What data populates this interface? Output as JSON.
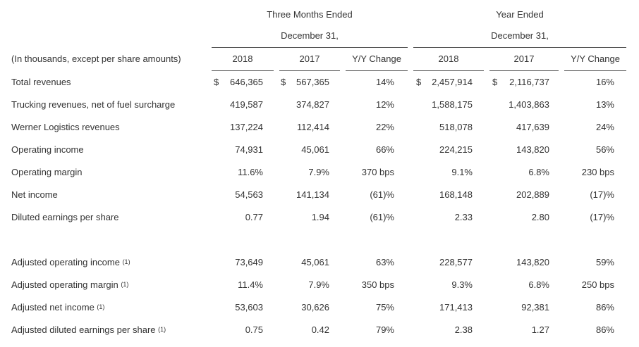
{
  "group_headers": {
    "three_months": {
      "line1": "Three Months Ended",
      "line2": "December 31,"
    },
    "year": {
      "line1": "Year Ended",
      "line2": "December 31,"
    }
  },
  "table": {
    "unit_label": "(In thousands, except per share amounts)",
    "columns": [
      "2018",
      "2017",
      "Y/Y Change",
      "2018",
      "2017",
      "Y/Y Change"
    ],
    "currency_symbol": "$",
    "rows": [
      {
        "label": "Total revenues",
        "sup": "",
        "values": [
          "646,365",
          "567,365",
          "14%",
          "2,457,914",
          "2,116,737",
          "16%"
        ]
      },
      {
        "label": "Trucking revenues, net of fuel surcharge",
        "sup": "",
        "values": [
          "419,587",
          "374,827",
          "12%",
          "1,588,175",
          "1,403,863",
          "13%"
        ]
      },
      {
        "label": "Werner Logistics revenues",
        "sup": "",
        "values": [
          "137,224",
          "112,414",
          "22%",
          "518,078",
          "417,639",
          "24%"
        ]
      },
      {
        "label": "Operating income",
        "sup": "",
        "values": [
          "74,931",
          "45,061",
          "66%",
          "224,215",
          "143,820",
          "56%"
        ]
      },
      {
        "label": "Operating margin",
        "sup": "",
        "values": [
          "11.6%",
          "7.9%",
          "370 bps",
          "9.1%",
          "6.8%",
          "230 bps"
        ]
      },
      {
        "label": "Net income",
        "sup": "",
        "values": [
          "54,563",
          "141,134",
          "(61)%",
          "168,148",
          "202,889",
          "(17)%"
        ]
      },
      {
        "label": "Diluted earnings per share",
        "sup": "",
        "values": [
          "0.77",
          "1.94",
          "(61)%",
          "2.33",
          "2.80",
          "(17)%"
        ]
      },
      {
        "label": "Adjusted operating income",
        "sup": "(1)",
        "values": [
          "73,649",
          "45,061",
          "63%",
          "228,577",
          "143,820",
          "59%"
        ]
      },
      {
        "label": "Adjusted operating margin",
        "sup": "(1)",
        "values": [
          "11.4%",
          "7.9%",
          "350 bps",
          "9.3%",
          "6.8%",
          "250 bps"
        ]
      },
      {
        "label": "Adjusted net income",
        "sup": "(1)",
        "values": [
          "53,603",
          "30,626",
          "75%",
          "171,413",
          "92,381",
          "86%"
        ]
      },
      {
        "label": "Adjusted diluted earnings per share",
        "sup": "(1)",
        "values": [
          "0.75",
          "0.42",
          "79%",
          "2.38",
          "1.27",
          "86%"
        ]
      }
    ]
  }
}
